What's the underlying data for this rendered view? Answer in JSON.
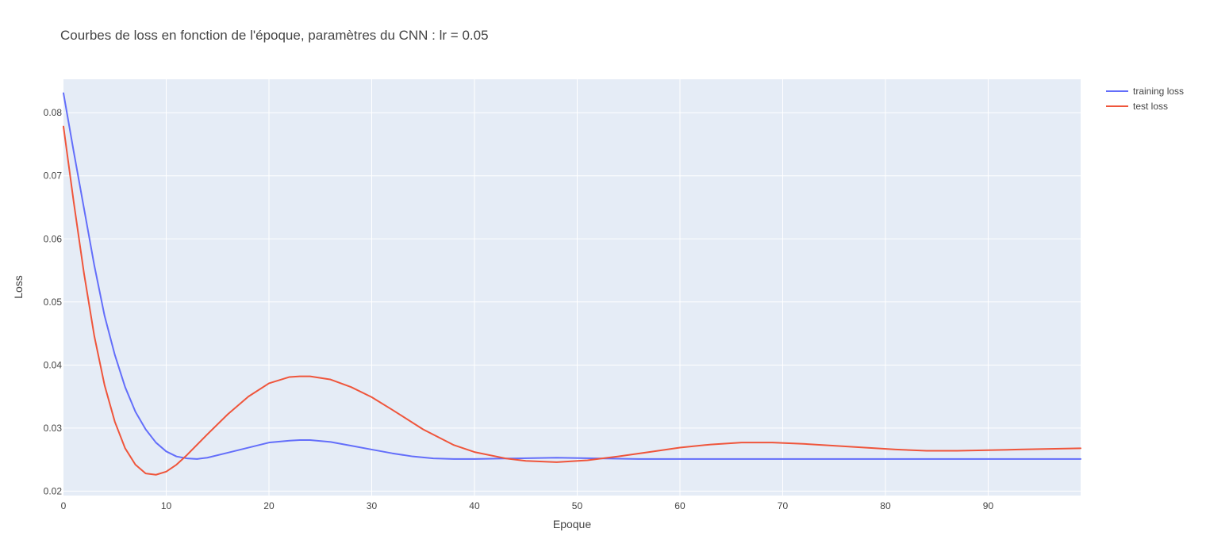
{
  "chart_data": {
    "type": "line",
    "title": "Courbes de loss en fonction de l'époque, paramètres du CNN : lr = 0.05",
    "xlabel": "Epoque",
    "ylabel": "Loss",
    "xlim": [
      0,
      99
    ],
    "ylim": [
      0.0193,
      0.0853
    ],
    "x_ticks": [
      0,
      10,
      20,
      30,
      40,
      50,
      60,
      70,
      80,
      90
    ],
    "y_ticks": [
      0.02,
      0.03,
      0.04,
      0.05,
      0.06,
      0.07,
      0.08
    ],
    "grid": true,
    "legend_position": "top-right",
    "colors": {
      "plot_bg": "#e5ecf6",
      "grid": "#ffffff"
    },
    "series": [
      {
        "name": "training loss",
        "color": "#636efa",
        "points": [
          [
            0,
            0.0831
          ],
          [
            1,
            0.0738
          ],
          [
            2,
            0.0648
          ],
          [
            3,
            0.0558
          ],
          [
            4,
            0.0478
          ],
          [
            5,
            0.0416
          ],
          [
            6,
            0.0365
          ],
          [
            7,
            0.0326
          ],
          [
            8,
            0.0298
          ],
          [
            9,
            0.0277
          ],
          [
            10,
            0.0263
          ],
          [
            11,
            0.0255
          ],
          [
            12,
            0.0252
          ],
          [
            13,
            0.0251
          ],
          [
            14,
            0.0253
          ],
          [
            16,
            0.0261
          ],
          [
            18,
            0.0269
          ],
          [
            20,
            0.0277
          ],
          [
            22,
            0.028
          ],
          [
            23,
            0.0281
          ],
          [
            24,
            0.0281
          ],
          [
            26,
            0.0278
          ],
          [
            28,
            0.0272
          ],
          [
            30,
            0.0266
          ],
          [
            32,
            0.026
          ],
          [
            34,
            0.0255
          ],
          [
            36,
            0.0252
          ],
          [
            38,
            0.0251
          ],
          [
            40,
            0.0251
          ],
          [
            44,
            0.0252
          ],
          [
            48,
            0.0253
          ],
          [
            52,
            0.0252
          ],
          [
            56,
            0.0251
          ],
          [
            60,
            0.0251
          ],
          [
            70,
            0.0251
          ],
          [
            80,
            0.0251
          ],
          [
            90,
            0.0251
          ],
          [
            99,
            0.0251
          ]
        ]
      },
      {
        "name": "test loss",
        "color": "#ef553b",
        "points": [
          [
            0,
            0.0778
          ],
          [
            1,
            0.0658
          ],
          [
            2,
            0.0545
          ],
          [
            3,
            0.0446
          ],
          [
            4,
            0.0368
          ],
          [
            5,
            0.031
          ],
          [
            6,
            0.0268
          ],
          [
            7,
            0.0242
          ],
          [
            8,
            0.0228
          ],
          [
            9,
            0.0226
          ],
          [
            10,
            0.0231
          ],
          [
            11,
            0.0242
          ],
          [
            12,
            0.0257
          ],
          [
            14,
            0.029
          ],
          [
            16,
            0.0322
          ],
          [
            18,
            0.035
          ],
          [
            20,
            0.0371
          ],
          [
            22,
            0.0381
          ],
          [
            23,
            0.0382
          ],
          [
            24,
            0.0382
          ],
          [
            26,
            0.0377
          ],
          [
            28,
            0.0365
          ],
          [
            30,
            0.0349
          ],
          [
            32,
            0.0329
          ],
          [
            35,
            0.0298
          ],
          [
            38,
            0.0273
          ],
          [
            40,
            0.0262
          ],
          [
            43,
            0.0252
          ],
          [
            45,
            0.0248
          ],
          [
            48,
            0.0246
          ],
          [
            51,
            0.0249
          ],
          [
            54,
            0.0255
          ],
          [
            57,
            0.0262
          ],
          [
            60,
            0.0269
          ],
          [
            63,
            0.0274
          ],
          [
            66,
            0.0277
          ],
          [
            69,
            0.0277
          ],
          [
            72,
            0.0275
          ],
          [
            75,
            0.0272
          ],
          [
            78,
            0.0269
          ],
          [
            81,
            0.0266
          ],
          [
            84,
            0.0264
          ],
          [
            87,
            0.0264
          ],
          [
            90,
            0.0265
          ],
          [
            93,
            0.0266
          ],
          [
            96,
            0.0267
          ],
          [
            99,
            0.0268
          ]
        ]
      }
    ]
  }
}
